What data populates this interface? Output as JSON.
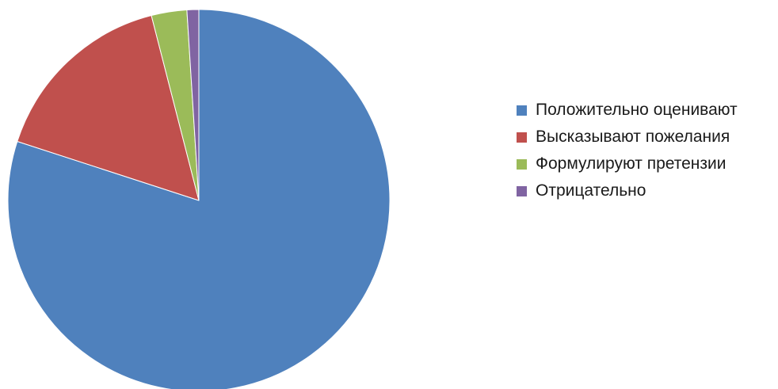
{
  "chart_data": {
    "type": "pie",
    "title": "",
    "start_angle_deg": 0,
    "direction": "clockwise",
    "legend_position": "right",
    "series": [
      {
        "name": "",
        "slices": [
          {
            "label": "Положительно оценивают",
            "value": 80,
            "color": "#4F81BD"
          },
          {
            "label": "Высказывают пожелания",
            "value": 16,
            "color": "#C0504D"
          },
          {
            "label": "Формулируют претензии",
            "value": 3,
            "color": "#9BBB59"
          },
          {
            "label": "Отрицательно",
            "value": 1,
            "color": "#8064A2"
          }
        ]
      }
    ]
  }
}
